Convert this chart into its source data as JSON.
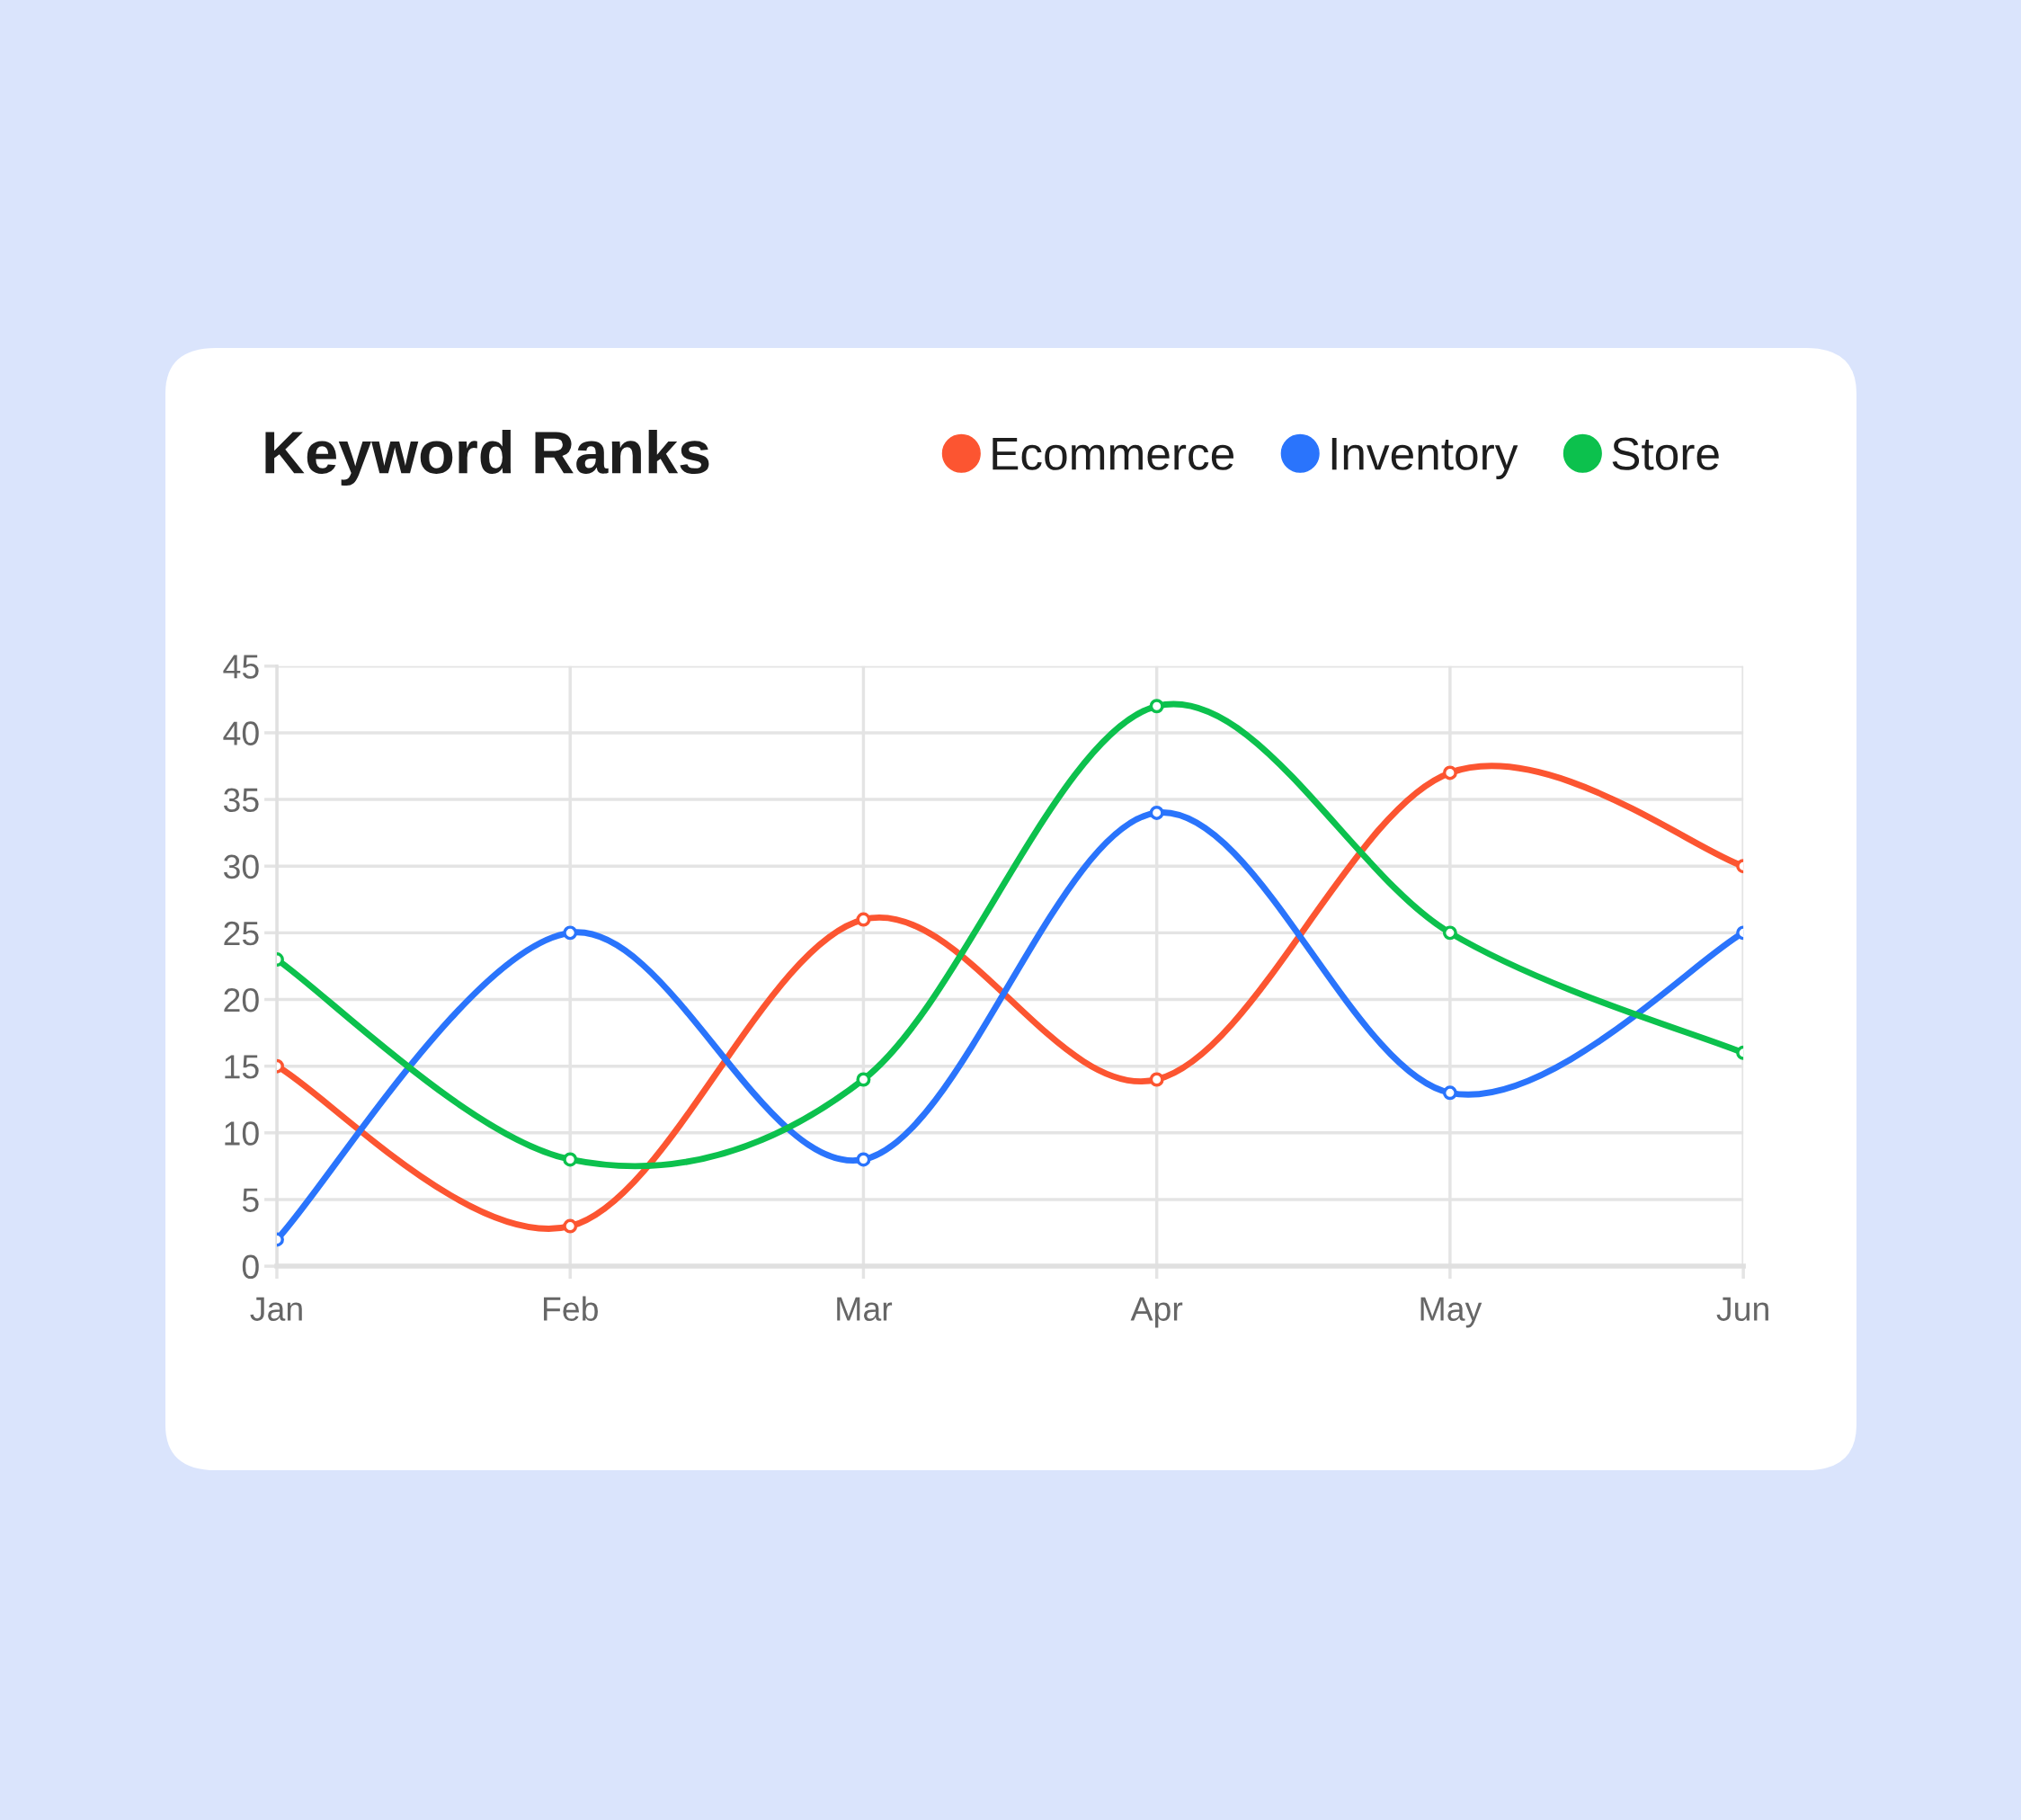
{
  "chart_data": {
    "type": "line",
    "title": "Keyword Ranks",
    "categories": [
      "Jan",
      "Feb",
      "Mar",
      "Apr",
      "May",
      "Jun"
    ],
    "series": [
      {
        "name": "Ecommerce",
        "color": "#fc5531",
        "values": [
          15,
          3,
          26,
          14,
          37,
          30
        ]
      },
      {
        "name": "Inventory",
        "color": "#2a74fc",
        "values": [
          2,
          25,
          8,
          34,
          13,
          25
        ]
      },
      {
        "name": "Store",
        "color": "#0cc14d",
        "values": [
          23,
          8,
          14,
          42,
          25,
          16
        ]
      }
    ],
    "ylim": [
      0,
      45
    ],
    "yticks": [
      0,
      5,
      10,
      15,
      20,
      25,
      30,
      35,
      40,
      45
    ],
    "grid": true,
    "legend": "top right",
    "marker": "circle",
    "line_style": "solid"
  }
}
